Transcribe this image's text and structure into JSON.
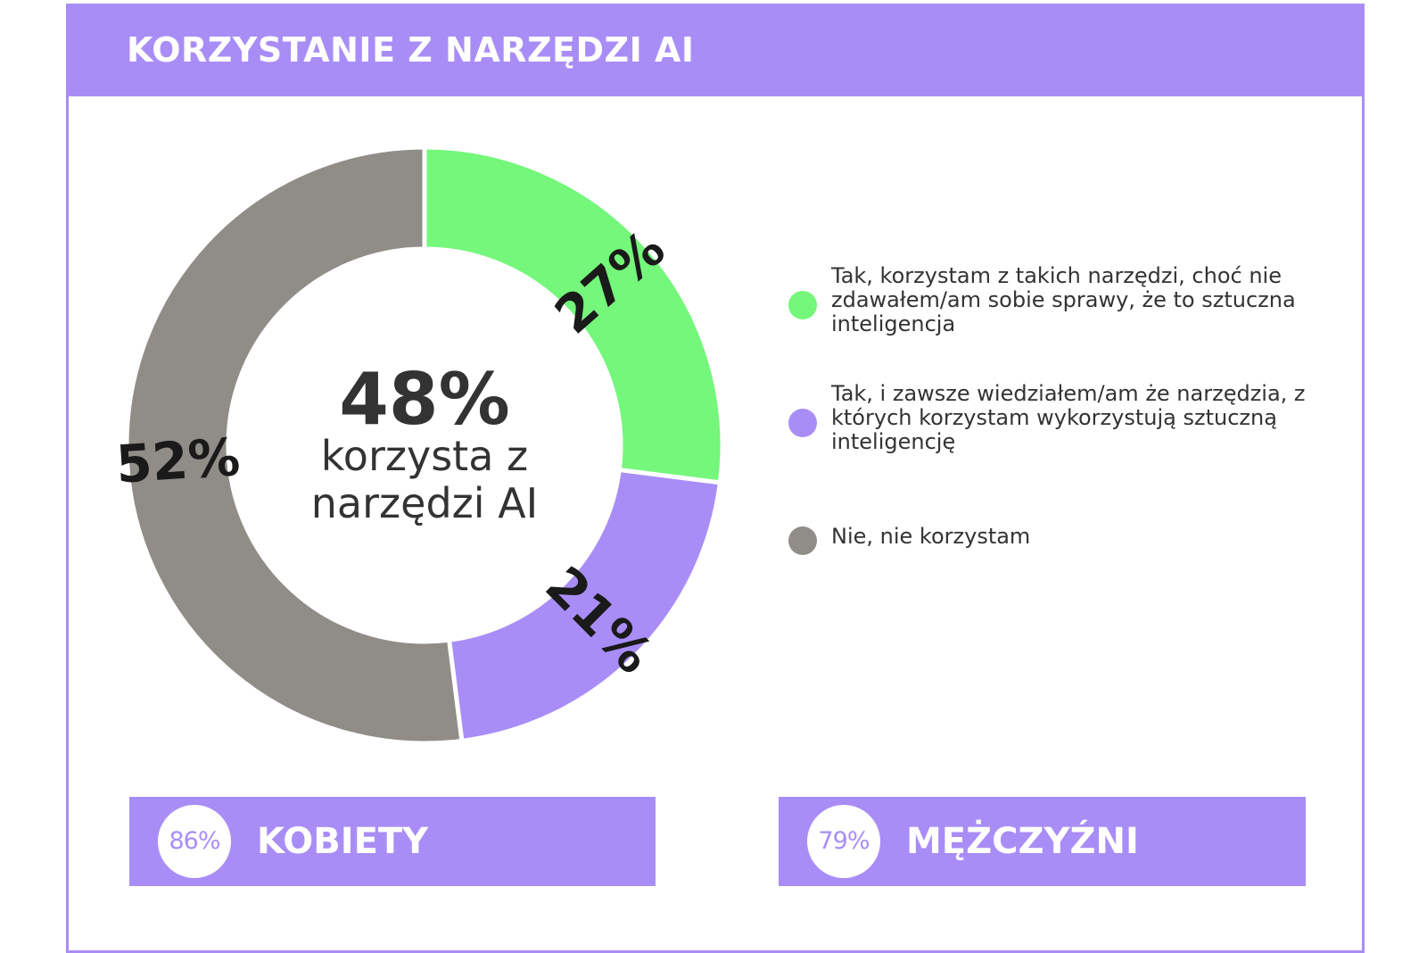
{
  "header": {
    "title": "KORZYSTANIE Z NARZĘDZI AI"
  },
  "chart_data": {
    "type": "pie",
    "donut": true,
    "categories": [
      "Tak, korzystam z takich narzędzi, choć nie zdawałem/am sobie sprawy, że to sztuczna inteligencja",
      "Tak, i zawsze wiedziałem/am że narzędzia, z których korzystam wykorzystują sztuczną inteligencję",
      "Nie, nie korzystam"
    ],
    "values": [
      27,
      21,
      52
    ],
    "value_labels": [
      "27%",
      "21%",
      "52%"
    ],
    "colors": [
      "#74f77a",
      "#a98df7",
      "#908d88"
    ],
    "center_value": "48%",
    "center_text": [
      "korzysta z",
      "narzędzi AI"
    ],
    "legend_position": "right"
  },
  "gender": [
    {
      "percent": "86%",
      "label": "KOBIETY"
    },
    {
      "percent": "79%",
      "label": "MĘŻCZYŹNI"
    }
  ],
  "colors": {
    "accent": "#a98df7",
    "green": "#74f77a",
    "gray": "#908d88",
    "text": "#333333"
  }
}
